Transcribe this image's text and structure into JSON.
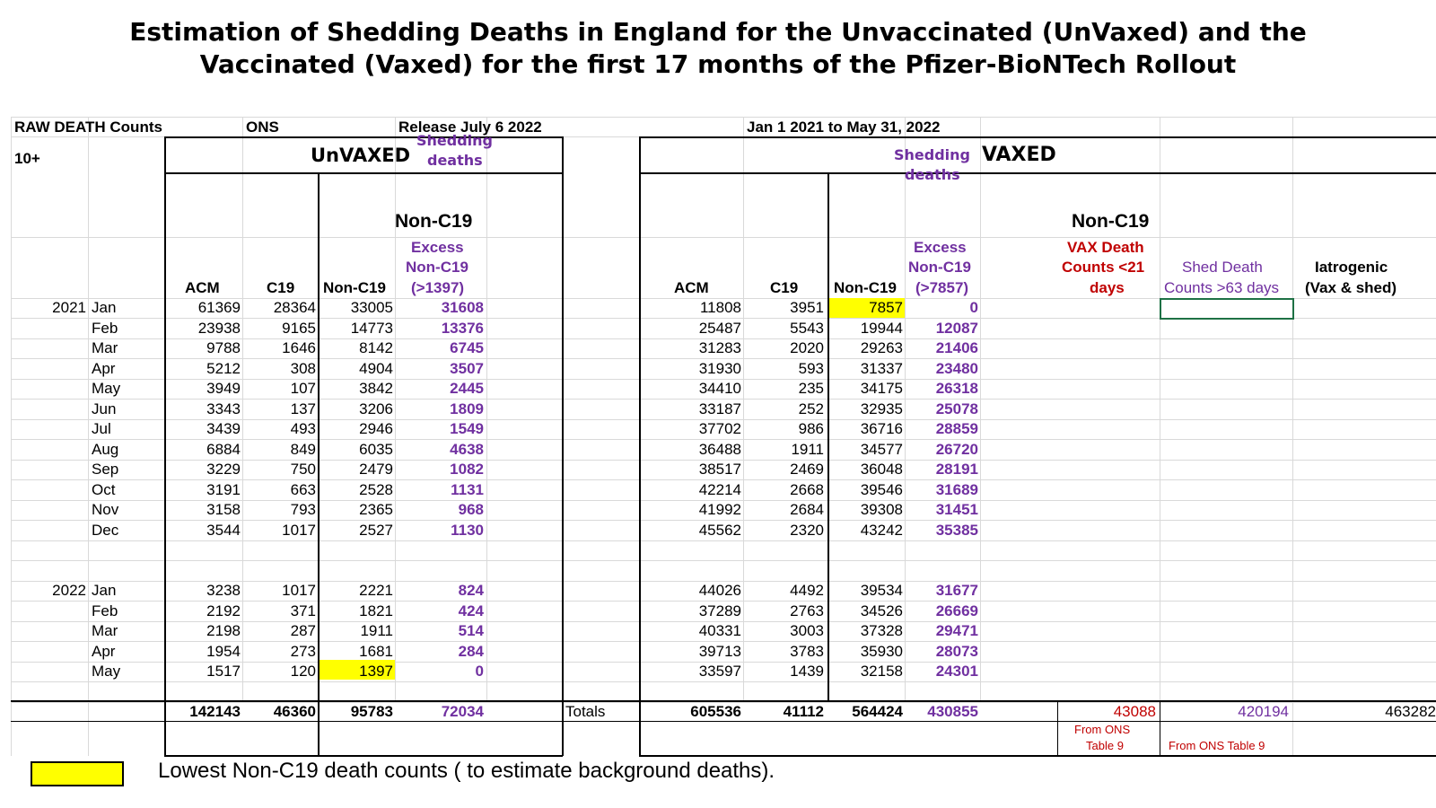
{
  "title": {
    "line1": "Estimation of Shedding Deaths in England for the Unvaccinated (UnVaxed) and the",
    "line2": "Vaccinated (Vaxed) for the first 17 months of the Pfizer-BioNTech Rollout"
  },
  "header": {
    "raw_death_counts": "RAW DEATH Counts",
    "ons": "ONS",
    "release": "Release July 6 2022",
    "date_range": "Jan 1 2021 to May 31, 2022",
    "age": "10+"
  },
  "unvaxed": {
    "label": "UnVAXED",
    "shedding": "Shedding",
    "deaths": "deaths",
    "non_c19_group": "Non-C19",
    "col_acm": "ACM",
    "col_c19": "C19",
    "col_non_c19": "Non-C19",
    "excess_1": "Excess",
    "excess_2": "Non-C19",
    "excess_3": "(>1397)",
    "totals": {
      "acm": "142143",
      "c19": "46360",
      "non_c19": "95783",
      "excess": "72034"
    }
  },
  "vaxed": {
    "label": "VAXED",
    "shedding": "Shedding",
    "deaths": "deaths",
    "non_c19_group": "Non-C19",
    "col_acm": "ACM",
    "col_c19": "C19",
    "col_non_c19": "Non-C19",
    "excess_1": "Excess",
    "excess_2": "Non-C19",
    "excess_3": "(>7857)",
    "vax_death_1": "VAX Death",
    "vax_death_2": "Counts  <21",
    "vax_death_3": "days",
    "shed_death_1": "Shed Death",
    "shed_death_2": "Counts >63 days",
    "iatro_1": "Iatrogenic",
    "iatro_2": "(Vax & shed)",
    "totals_label": "Totals",
    "totals": {
      "acm": "605536",
      "c19": "41112",
      "non_c19": "564424",
      "excess": "430855",
      "vax_death": "43088",
      "shed_death": "420194",
      "iatrogenic": "463282"
    },
    "from_ons_a1": "From ONS",
    "from_ons_a2": "Table 9",
    "from_ons_b": "From ONS Table 9"
  },
  "rows": [
    {
      "year": "2021",
      "month": "Jan",
      "u_acm": "61369",
      "u_c19": "28364",
      "u_non": "33005",
      "u_exc": "31608",
      "v_acm": "11808",
      "v_c19": "3951",
      "v_non": "7857",
      "v_exc": "0"
    },
    {
      "year": "",
      "month": "Feb",
      "u_acm": "23938",
      "u_c19": "9165",
      "u_non": "14773",
      "u_exc": "13376",
      "v_acm": "25487",
      "v_c19": "5543",
      "v_non": "19944",
      "v_exc": "12087"
    },
    {
      "year": "",
      "month": "Mar",
      "u_acm": "9788",
      "u_c19": "1646",
      "u_non": "8142",
      "u_exc": "6745",
      "v_acm": "31283",
      "v_c19": "2020",
      "v_non": "29263",
      "v_exc": "21406"
    },
    {
      "year": "",
      "month": "Apr",
      "u_acm": "5212",
      "u_c19": "308",
      "u_non": "4904",
      "u_exc": "3507",
      "v_acm": "31930",
      "v_c19": "593",
      "v_non": "31337",
      "v_exc": "23480"
    },
    {
      "year": "",
      "month": "May",
      "u_acm": "3949",
      "u_c19": "107",
      "u_non": "3842",
      "u_exc": "2445",
      "v_acm": "34410",
      "v_c19": "235",
      "v_non": "34175",
      "v_exc": "26318"
    },
    {
      "year": "",
      "month": "Jun",
      "u_acm": "3343",
      "u_c19": "137",
      "u_non": "3206",
      "u_exc": "1809",
      "v_acm": "33187",
      "v_c19": "252",
      "v_non": "32935",
      "v_exc": "25078"
    },
    {
      "year": "",
      "month": "Jul",
      "u_acm": "3439",
      "u_c19": "493",
      "u_non": "2946",
      "u_exc": "1549",
      "v_acm": "37702",
      "v_c19": "986",
      "v_non": "36716",
      "v_exc": "28859"
    },
    {
      "year": "",
      "month": "Aug",
      "u_acm": "6884",
      "u_c19": "849",
      "u_non": "6035",
      "u_exc": "4638",
      "v_acm": "36488",
      "v_c19": "1911",
      "v_non": "34577",
      "v_exc": "26720"
    },
    {
      "year": "",
      "month": "Sep",
      "u_acm": "3229",
      "u_c19": "750",
      "u_non": "2479",
      "u_exc": "1082",
      "v_acm": "38517",
      "v_c19": "2469",
      "v_non": "36048",
      "v_exc": "28191"
    },
    {
      "year": "",
      "month": "Oct",
      "u_acm": "3191",
      "u_c19": "663",
      "u_non": "2528",
      "u_exc": "1131",
      "v_acm": "42214",
      "v_c19": "2668",
      "v_non": "39546",
      "v_exc": "31689"
    },
    {
      "year": "",
      "month": "Nov",
      "u_acm": "3158",
      "u_c19": "793",
      "u_non": "2365",
      "u_exc": "968",
      "v_acm": "41992",
      "v_c19": "2684",
      "v_non": "39308",
      "v_exc": "31451"
    },
    {
      "year": "",
      "month": "Dec",
      "u_acm": "3544",
      "u_c19": "1017",
      "u_non": "2527",
      "u_exc": "1130",
      "v_acm": "45562",
      "v_c19": "2320",
      "v_non": "43242",
      "v_exc": "35385"
    },
    {
      "year": "2022",
      "month": "Jan",
      "u_acm": "3238",
      "u_c19": "1017",
      "u_non": "2221",
      "u_exc": "824",
      "v_acm": "44026",
      "v_c19": "4492",
      "v_non": "39534",
      "v_exc": "31677"
    },
    {
      "year": "",
      "month": "Feb",
      "u_acm": "2192",
      "u_c19": "371",
      "u_non": "1821",
      "u_exc": "424",
      "v_acm": "37289",
      "v_c19": "2763",
      "v_non": "34526",
      "v_exc": "26669"
    },
    {
      "year": "",
      "month": "Mar",
      "u_acm": "2198",
      "u_c19": "287",
      "u_non": "1911",
      "u_exc": "514",
      "v_acm": "40331",
      "v_c19": "3003",
      "v_non": "37328",
      "v_exc": "29471"
    },
    {
      "year": "",
      "month": "Apr",
      "u_acm": "1954",
      "u_c19": "273",
      "u_non": "1681",
      "u_exc": "284",
      "v_acm": "39713",
      "v_c19": "3783",
      "v_non": "35930",
      "v_exc": "28073"
    },
    {
      "year": "",
      "month": "May",
      "u_acm": "1517",
      "u_c19": "120",
      "u_non": "1397",
      "u_exc": "0",
      "v_acm": "33597",
      "v_c19": "1439",
      "v_non": "32158",
      "v_exc": "24301"
    }
  ],
  "legend": {
    "text": "Lowest Non-C19 death counts ( to estimate background deaths)."
  }
}
